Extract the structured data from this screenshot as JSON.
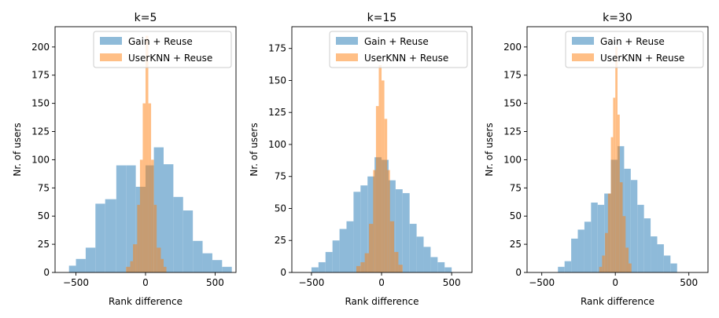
{
  "chart_data": [
    {
      "type": "histogram",
      "title": "k=5",
      "xlabel": "Rank difference",
      "ylabel": "Nr. of users",
      "xlim": [
        -650,
        650
      ],
      "ylim": [
        0,
        218
      ],
      "xticks": [
        -500,
        0,
        500
      ],
      "yticks": [
        0,
        25,
        50,
        75,
        100,
        125,
        150,
        175,
        200
      ],
      "grid": false,
      "legend_position": "upper-right",
      "series": [
        {
          "name": "Gain + Reuse",
          "color": "#1f77b4",
          "opacity": 0.5,
          "bin_edges": [
            -550,
            -500,
            -430,
            -360,
            -290,
            -210,
            -140,
            -70,
            0,
            60,
            130,
            200,
            270,
            340,
            410,
            480,
            550,
            620
          ],
          "counts": [
            6,
            12,
            22,
            61,
            65,
            95,
            95,
            76,
            95,
            111,
            96,
            67,
            55,
            28,
            17,
            11,
            5
          ]
        },
        {
          "name": "UserKNN + Reuse",
          "color": "#ff7f0e",
          "opacity": 0.5,
          "bin_edges": [
            -140,
            -110,
            -90,
            -60,
            -40,
            -20,
            0,
            20,
            40,
            60,
            80,
            110,
            130,
            150
          ],
          "counts": [
            5,
            10,
            25,
            60,
            100,
            150,
            210,
            150,
            100,
            60,
            22,
            12,
            5
          ]
        }
      ]
    },
    {
      "type": "histogram",
      "title": "k=15",
      "xlabel": "Rank difference",
      "ylabel": "Nr. of users",
      "xlim": [
        -640,
        645
      ],
      "ylim": [
        0,
        192
      ],
      "xticks": [
        -500,
        0,
        500
      ],
      "yticks": [
        0,
        25,
        50,
        75,
        100,
        125,
        150,
        175
      ],
      "grid": false,
      "legend_position": "upper-right",
      "series": [
        {
          "name": "Gain + Reuse",
          "color": "#1f77b4",
          "opacity": 0.5,
          "bin_edges": [
            -500,
            -450,
            -400,
            -350,
            -300,
            -250,
            -200,
            -150,
            -100,
            -50,
            0,
            50,
            100,
            150,
            200,
            250,
            300,
            350,
            400,
            450,
            500
          ],
          "counts": [
            4,
            8,
            16,
            25,
            34,
            40,
            63,
            68,
            75,
            90,
            88,
            72,
            65,
            62,
            38,
            28,
            20,
            12,
            8,
            4
          ]
        },
        {
          "name": "UserKNN + Reuse",
          "color": "#ff7f0e",
          "opacity": 0.5,
          "bin_edges": [
            -180,
            -150,
            -120,
            -90,
            -60,
            -40,
            -20,
            0,
            20,
            40,
            60,
            90,
            120,
            150
          ],
          "counts": [
            5,
            8,
            15,
            38,
            80,
            130,
            162,
            150,
            120,
            80,
            40,
            16,
            6
          ]
        }
      ]
    },
    {
      "type": "histogram",
      "title": "k=30",
      "xlabel": "Rank difference",
      "ylabel": "Nr. of users",
      "xlim": [
        -600,
        630
      ],
      "ylim": [
        0,
        218
      ],
      "xticks": [
        -500,
        0,
        500
      ],
      "yticks": [
        0,
        25,
        50,
        75,
        100,
        125,
        150,
        175,
        200
      ],
      "grid": false,
      "legend_position": "upper-right",
      "series": [
        {
          "name": "Gain + Reuse",
          "color": "#1f77b4",
          "opacity": 0.5,
          "bin_edges": [
            -390,
            -345,
            -300,
            -255,
            -210,
            -165,
            -120,
            -75,
            -30,
            15,
            60,
            105,
            150,
            195,
            240,
            285,
            330,
            375,
            420
          ],
          "counts": [
            5,
            10,
            30,
            38,
            45,
            62,
            60,
            70,
            100,
            112,
            92,
            82,
            60,
            48,
            32,
            25,
            15,
            8
          ]
        },
        {
          "name": "UserKNN + Reuse",
          "color": "#ff7f0e",
          "opacity": 0.5,
          "bin_edges": [
            -110,
            -90,
            -70,
            -50,
            -30,
            -15,
            0,
            15,
            30,
            50,
            70,
            90,
            110
          ],
          "counts": [
            5,
            15,
            35,
            70,
            120,
            155,
            200,
            140,
            80,
            50,
            22,
            8
          ]
        }
      ]
    }
  ]
}
